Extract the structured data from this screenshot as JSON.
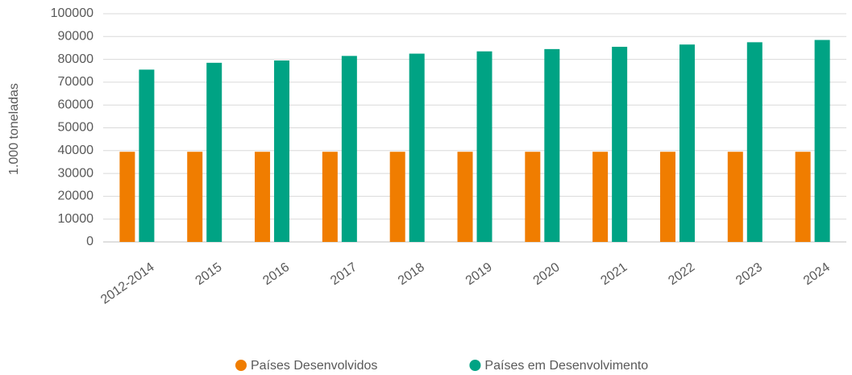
{
  "chart_data": {
    "type": "bar",
    "ylabel": "1.000 toneladas",
    "categories": [
      "2012-2014",
      "2015",
      "2016",
      "2017",
      "2018",
      "2019",
      "2020",
      "2021",
      "2022",
      "2023",
      "2024"
    ],
    "series": [
      {
        "name": "Países Desenvolvidos",
        "color": "#f07d00",
        "values": [
          39500,
          39500,
          39500,
          39500,
          39500,
          39500,
          39500,
          39500,
          39500,
          39500,
          39500
        ]
      },
      {
        "name": "Países em Desenvolvimento",
        "color": "#00a384",
        "values": [
          75500,
          78500,
          79500,
          81500,
          82500,
          83500,
          84500,
          85500,
          86500,
          87500,
          88500
        ]
      }
    ],
    "ylim": [
      0,
      100000
    ],
    "yticks": [
      0,
      10000,
      20000,
      30000,
      40000,
      50000,
      60000,
      70000,
      80000,
      90000,
      100000
    ],
    "grid": true,
    "legend": "bottom"
  }
}
